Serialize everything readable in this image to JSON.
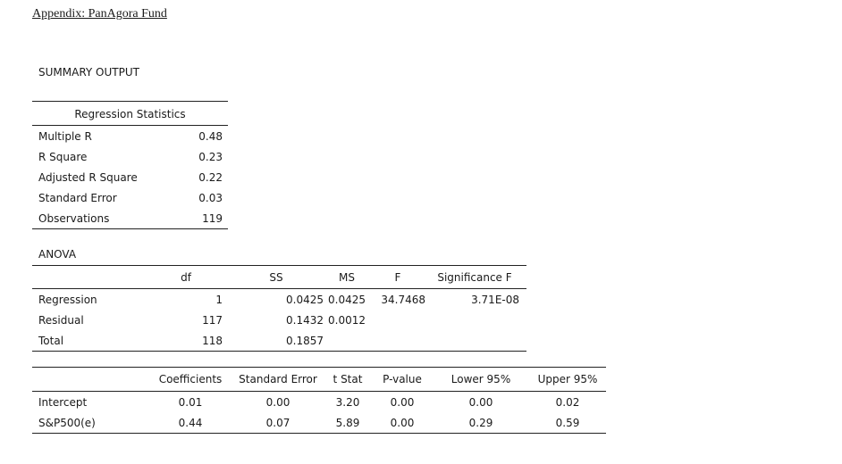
{
  "appendix_title": "Appendix: PanAgora Fund",
  "summary_title": "SUMMARY OUTPUT",
  "regression_statistics": {
    "header": "Regression Statistics",
    "rows": [
      {
        "label": "Multiple R",
        "value": "0.48"
      },
      {
        "label": "R Square",
        "value": "0.23"
      },
      {
        "label": "Adjusted R Square",
        "value": "0.22"
      },
      {
        "label": "Standard Error",
        "value": "0.03"
      },
      {
        "label": "Observations",
        "value": "119"
      }
    ]
  },
  "anova": {
    "title": "ANOVA",
    "headers": [
      "",
      "df",
      "SS",
      "MS",
      "F",
      "Significance F"
    ],
    "rows": [
      [
        "Regression",
        "1",
        "0.0425",
        "0.0425",
        "34.7468",
        "3.71E-08"
      ],
      [
        "Residual",
        "117",
        "0.1432",
        "0.0012",
        "",
        ""
      ],
      [
        "Total",
        "118",
        "0.1857",
        "",
        "",
        ""
      ]
    ]
  },
  "coefficients": {
    "headers": [
      "",
      "Coefficients",
      "Standard Error",
      "t Stat",
      "P-value",
      "Lower 95%",
      "Upper 95%"
    ],
    "rows": [
      [
        "Intercept",
        "0.01",
        "0.00",
        "3.20",
        "0.00",
        "0.00",
        "0.02"
      ],
      [
        "S&P500(e)",
        "0.44",
        "0.07",
        "5.89",
        "0.00",
        "0.29",
        "0.59"
      ]
    ]
  }
}
